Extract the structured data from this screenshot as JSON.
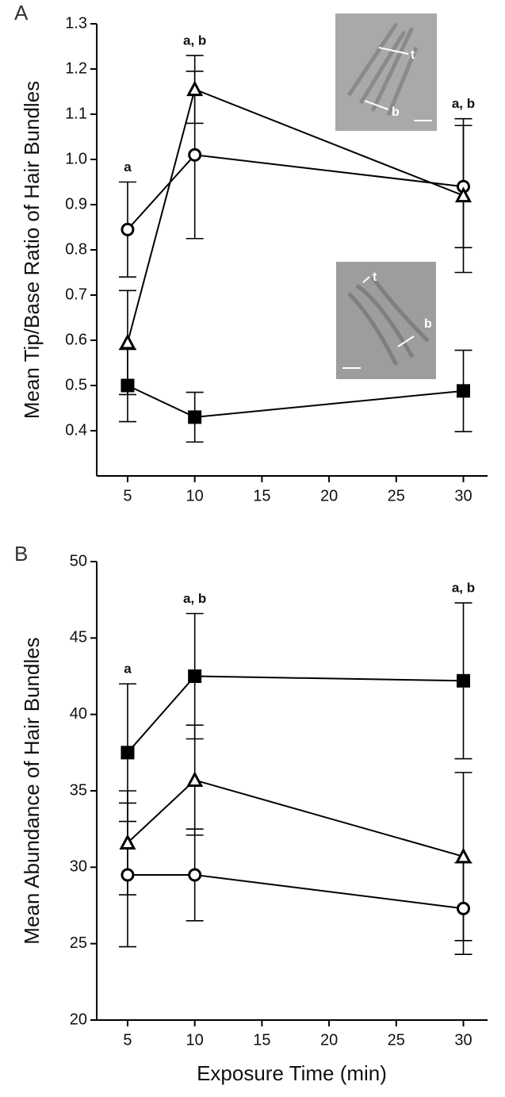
{
  "chart_data": [
    {
      "type": "line",
      "panel": "A",
      "ylabel": "Mean Tip/Base Ratio of Hair Bundles",
      "x": [
        5,
        10,
        30
      ],
      "xlim": [
        2.7,
        31.8
      ],
      "xticks": [
        5,
        10,
        15,
        20,
        25,
        30
      ],
      "ylim": [
        0.3,
        1.3
      ],
      "yticks": [
        0.4,
        0.5,
        0.6,
        0.7,
        0.8,
        0.9,
        {
          "value": 1,
          "label": "1.0"
        },
        1.1,
        1.2,
        1.3
      ],
      "annotations": [
        "a",
        "a, b",
        "a, b"
      ],
      "insets": [
        {
          "labels": [
            "t",
            "b"
          ]
        },
        {
          "labels": [
            "t",
            "b"
          ]
        }
      ],
      "series": [
        {
          "marker": "circle",
          "color": "#000000",
          "values": [
            0.845,
            1.01,
            0.94
          ],
          "errors": [
            0.105,
            0.185,
            0.135
          ]
        },
        {
          "marker": "triangle",
          "color": "#000000",
          "values": [
            0.595,
            1.155,
            0.92
          ],
          "errors": [
            0.115,
            0.075,
            0.17
          ]
        },
        {
          "marker": "square",
          "color": "#000000",
          "values": [
            0.5,
            0.43,
            0.488
          ],
          "errors": [
            0.08,
            0.055,
            0.09
          ]
        }
      ]
    },
    {
      "type": "line",
      "panel": "B",
      "ylabel": "Mean Abundance of Hair Bundles",
      "xlabel": "Exposure Time (min)",
      "x": [
        5,
        10,
        30
      ],
      "xlim": [
        2.7,
        31.8
      ],
      "xticks": [
        5,
        10,
        15,
        20,
        25,
        30
      ],
      "ylim": [
        20,
        50
      ],
      "yticks": [
        20,
        25,
        30,
        35,
        40,
        45,
        50
      ],
      "annotations": [
        "a",
        "a, b",
        "a, b"
      ],
      "series": [
        {
          "marker": "square",
          "color": "#000000",
          "values": [
            37.5,
            42.5,
            42.2
          ],
          "errors": [
            4.5,
            4.1,
            5.1
          ]
        },
        {
          "marker": "triangle",
          "color": "#000000",
          "values": [
            31.6,
            35.7,
            30.7
          ],
          "errors": [
            3.4,
            3.6,
            5.5
          ]
        },
        {
          "marker": "circle",
          "color": "#000000",
          "values": [
            29.5,
            29.5,
            27.3
          ],
          "errors": [
            4.7,
            3.0,
            3.0
          ]
        }
      ]
    }
  ]
}
